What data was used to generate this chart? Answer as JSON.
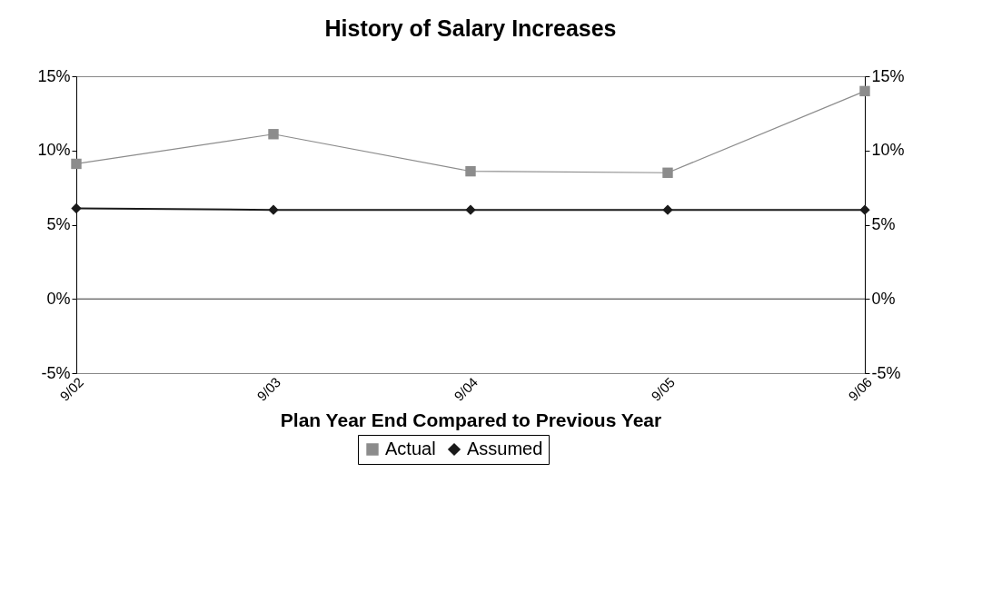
{
  "chart_data": {
    "type": "line",
    "title": "History of Salary Increases",
    "xlabel": "Plan Year End Compared to Previous Year",
    "categories": [
      "9/02",
      "9/03",
      "9/04",
      "9/05",
      "9/06"
    ],
    "series": [
      {
        "name": "Actual",
        "color": "#8c8c8c",
        "marker": "square",
        "values": [
          9.1,
          11.1,
          8.6,
          8.5,
          14.0
        ]
      },
      {
        "name": "Assumed",
        "color": "#1a1a1a",
        "marker": "diamond",
        "values": [
          6.1,
          6.0,
          6.0,
          6.0,
          6.0
        ]
      }
    ],
    "ylim": [
      -5,
      15
    ],
    "yticks": [
      {
        "value": -5,
        "label": "-5%"
      },
      {
        "value": 0,
        "label": "0%"
      },
      {
        "value": 5,
        "label": "5%"
      },
      {
        "value": 10,
        "label": "10%"
      },
      {
        "value": 15,
        "label": "15%"
      }
    ],
    "y2lim": [
      -5,
      15
    ],
    "y2ticks": [
      {
        "value": -5,
        "label": "-5%"
      },
      {
        "value": 0,
        "label": "0%"
      },
      {
        "value": 5,
        "label": "5%"
      },
      {
        "value": 10,
        "label": "10%"
      },
      {
        "value": 15,
        "label": "15%"
      }
    ],
    "ref_lines": [
      {
        "axis": "y",
        "value": 0,
        "color": "#333333"
      }
    ],
    "legend": "bottom",
    "grid": false
  }
}
